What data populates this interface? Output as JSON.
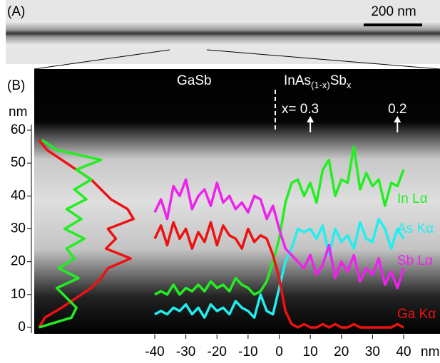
{
  "chart_data": {
    "type": "line",
    "panel_a_label": "(A)",
    "scale_bar": "200 nm",
    "panel_b_label": "(B)",
    "region_left": "GaSb",
    "region_right": [
      "InAs",
      "(1-x)",
      "Sb",
      "x"
    ],
    "annotations": [
      {
        "text": "x= 0.3",
        "x": 10
      },
      {
        "text": "0.2",
        "x": 38
      }
    ],
    "y_label": "nm",
    "x_label": "nm",
    "xlim": [
      -40,
      40
    ],
    "xticks": [
      -40,
      -30,
      -20,
      -10,
      0,
      10,
      20,
      30,
      40
    ],
    "ylim": [
      0,
      60
    ],
    "yticks": [
      0,
      10,
      20,
      30,
      40,
      50,
      60
    ],
    "x": [
      -40,
      -38,
      -36,
      -34,
      -32,
      -30,
      -28,
      -26,
      -24,
      -22,
      -20,
      -18,
      -16,
      -14,
      -12,
      -10,
      -8,
      -6,
      -4,
      -2,
      0,
      2,
      4,
      6,
      8,
      10,
      12,
      14,
      16,
      18,
      20,
      22,
      24,
      26,
      28,
      30,
      32,
      34,
      36,
      38,
      40
    ],
    "series": [
      {
        "name": "In Lα",
        "color": "#22ee22",
        "values": [
          10,
          11,
          10,
          13,
          10,
          12,
          11,
          13,
          11,
          14,
          12,
          13,
          11,
          15,
          13,
          12,
          10,
          11,
          14,
          20,
          27,
          38,
          44,
          45,
          40,
          44,
          38,
          48,
          51,
          40,
          45,
          44,
          55,
          42,
          47,
          43,
          45,
          37,
          44,
          43,
          48
        ]
      },
      {
        "name": "As Kα",
        "color": "#22eeee",
        "values": [
          4,
          5,
          4,
          6,
          5,
          7,
          4,
          6,
          3,
          7,
          5,
          6,
          4,
          8,
          6,
          5,
          3,
          10,
          5,
          4,
          12,
          20,
          24,
          30,
          29,
          30,
          27,
          31,
          22,
          30,
          26,
          28,
          24,
          32,
          27,
          26,
          33,
          30,
          24,
          30,
          27
        ]
      },
      {
        "name": "Sb Lα",
        "color": "#ee22ee",
        "values": [
          35,
          39,
          33,
          43,
          40,
          45,
          36,
          40,
          42,
          37,
          44,
          38,
          40,
          36,
          38,
          35,
          40,
          39,
          33,
          37,
          30,
          24,
          22,
          20,
          18,
          22,
          16,
          19,
          25,
          15,
          20,
          17,
          22,
          14,
          18,
          16,
          21,
          13,
          17,
          12,
          18
        ]
      },
      {
        "name": "Ga Kα",
        "color": "#ee1111",
        "values": [
          27,
          31,
          25,
          32,
          27,
          30,
          24,
          29,
          26,
          32,
          25,
          31,
          28,
          27,
          24,
          30,
          26,
          28,
          27,
          22,
          15,
          5,
          1,
          0,
          1,
          0,
          0,
          1,
          0,
          1,
          0,
          0,
          1,
          0,
          0,
          0,
          0,
          0,
          0,
          1,
          0
        ]
      }
    ],
    "depth_profile": {
      "y": [
        0,
        3,
        6,
        9,
        12,
        15,
        18,
        21,
        24,
        27,
        30,
        33,
        36,
        39,
        42,
        45,
        48,
        51,
        54,
        57
      ],
      "series": [
        {
          "color": "#ee1111",
          "values": [
            2,
            8,
            25,
            40,
            55,
            65,
            72,
            95,
            70,
            80,
            72,
            98,
            92,
            75,
            65,
            55,
            40,
            25,
            10,
            2
          ]
        },
        {
          "color": "#22ee22",
          "values": [
            2,
            35,
            40,
            30,
            20,
            42,
            22,
            38,
            30,
            48,
            28,
            45,
            30,
            50,
            38,
            55,
            40,
            65,
            20,
            5
          ]
        }
      ]
    }
  }
}
